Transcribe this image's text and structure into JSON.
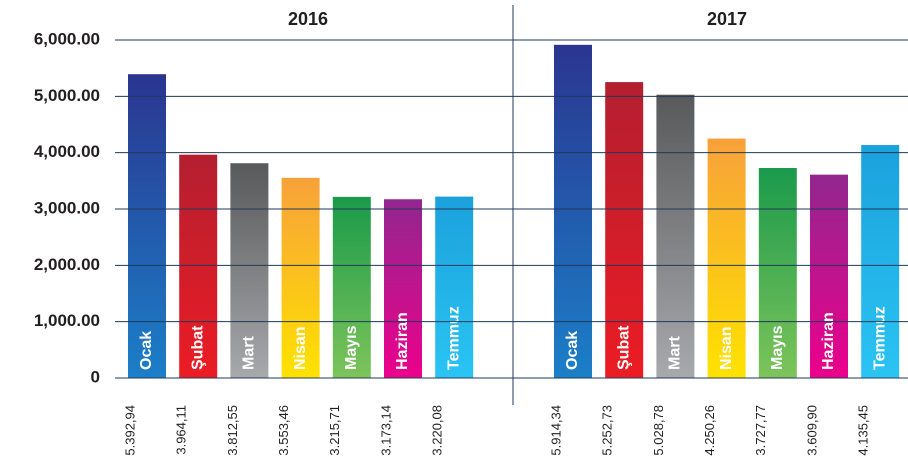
{
  "chart_data": {
    "type": "bar",
    "ylim": [
      0,
      6000
    ],
    "yticks": [
      0,
      {
        "value": 1000,
        "label": "1,000.00"
      },
      {
        "value": 2000,
        "label": "2,000.00"
      },
      {
        "value": 3000,
        "label": "3,000.00"
      },
      {
        "value": 4000,
        "label": "4,000.00"
      },
      {
        "value": 5000,
        "label": "5,000.00"
      },
      {
        "value": 6000,
        "label": "6,000.00"
      }
    ],
    "grid": true,
    "colors": [
      [
        "#2b3590",
        "#1b7fc8"
      ],
      [
        "#b41f30",
        "#ec1c24"
      ],
      [
        "#58595b",
        "#a7a9ac"
      ],
      [
        "#f7a13a",
        "#ffe200"
      ],
      [
        "#1a9a4b",
        "#7dc45a"
      ],
      [
        "#92278f",
        "#ec008c"
      ],
      [
        "#1ba1dc",
        "#2ac4f3"
      ]
    ],
    "panels": [
      {
        "title": "2016",
        "categories": [
          "Ocak",
          "Şubat",
          "Mart",
          "Nisan",
          "Mayıs",
          "Haziran",
          "Temmuz"
        ],
        "values": [
          5392.94,
          3964.11,
          3812.55,
          3553.46,
          3215.71,
          3173.14,
          3220.08
        ],
        "value_labels": [
          "5.392,94",
          "3.964,11",
          "3.812,55",
          "3.553,46",
          "3.215,71",
          "3.173,14",
          "3.220,08"
        ]
      },
      {
        "title": "2017",
        "categories": [
          "Ocak",
          "Şubat",
          "Mart",
          "Nisan",
          "Mayıs",
          "Haziran",
          "Temmuz"
        ],
        "values": [
          5914.34,
          5252.73,
          5028.78,
          4250.26,
          3727.77,
          3609.9,
          4135.45
        ],
        "value_labels": [
          "5.914,34",
          "5.252,73",
          "5.028,78",
          "4.250,26",
          "3.727,77",
          "3.609,90",
          "4.135,45"
        ]
      }
    ]
  }
}
